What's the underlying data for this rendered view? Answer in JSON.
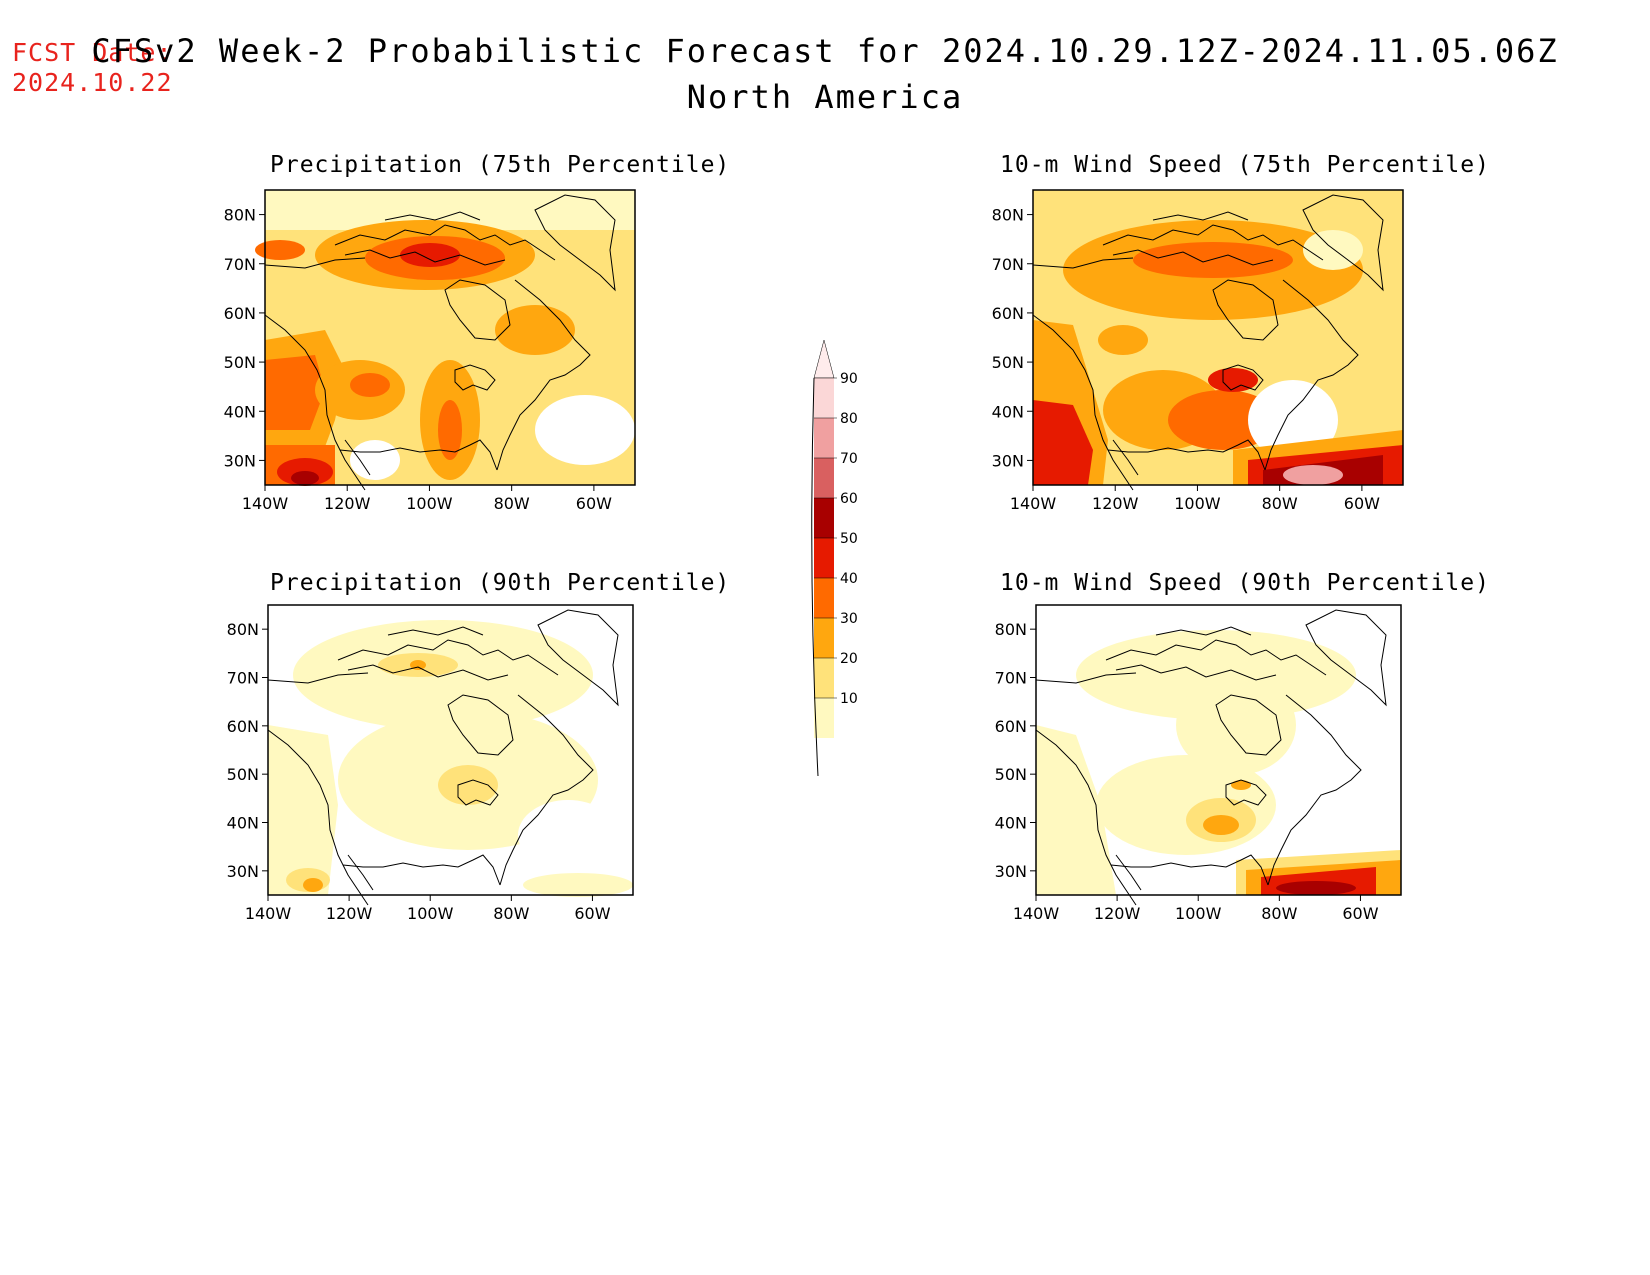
{
  "fcst": {
    "line1": "FCST Date:",
    "line2": "2024.10.22"
  },
  "title": {
    "line1": "CFSv2 Week-2 Probabilistic Forecast for 2024.10.29.12Z-2024.11.05.06Z",
    "line2": "North America"
  },
  "panels": [
    {
      "id": "precip75",
      "title": "Precipitation (75th Percentile)"
    },
    {
      "id": "wind75",
      "title": "10-m Wind Speed (75th Percentile)"
    },
    {
      "id": "precip90",
      "title": "Precipitation (90th Percentile)"
    },
    {
      "id": "wind90",
      "title": "10-m Wind Speed (90th Percentile)"
    }
  ],
  "axes": {
    "lat_labels": [
      "80N",
      "70N",
      "60N",
      "50N",
      "40N",
      "30N"
    ],
    "lon_labels": [
      "140W",
      "120W",
      "100W",
      "80W",
      "60W"
    ],
    "lon_range": [
      -140,
      -50
    ],
    "lat_range": [
      25,
      85
    ]
  },
  "colorbar": {
    "labels": [
      "10",
      "20",
      "30",
      "40",
      "50",
      "60",
      "70",
      "80",
      "90"
    ],
    "colors": [
      "#fff9c0",
      "#ffe27a",
      "#ffa70f",
      "#ff6a00",
      "#e61a00",
      "#a80000",
      "#d96060",
      "#f0a0a0",
      "#fbd7d7",
      "#ffecec"
    ]
  }
}
